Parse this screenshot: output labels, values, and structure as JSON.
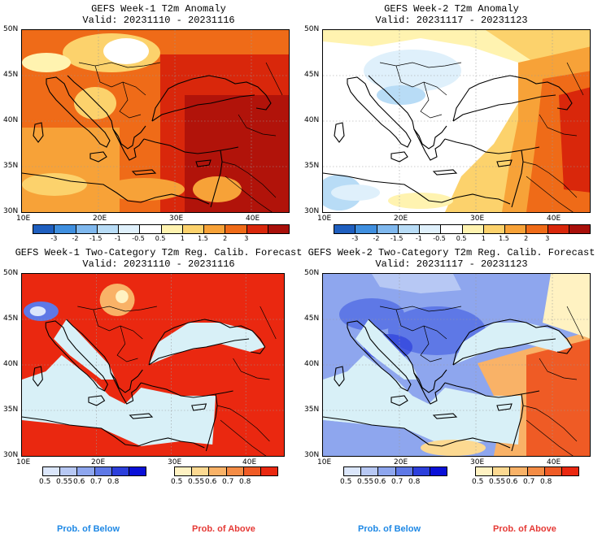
{
  "panels": [
    {
      "title": "GEFS Week-1 T2m Anomaly",
      "valid": "Valid: 20231110 - 20231116"
    },
    {
      "title": "GEFS Week-2 T2m Anomaly",
      "valid": "Valid: 20231117 - 20231123"
    },
    {
      "title": "GEFS Week-1 Two-Category T2m Reg. Calib. Forecast",
      "valid": "Valid: 20231110 - 20231116"
    },
    {
      "title": "GEFS Week-2 Two-Category T2m Reg. Calib. Forecast",
      "valid": "Valid: 20231117 - 20231123"
    }
  ],
  "axes": {
    "lat_labels": [
      "50N",
      "45N",
      "40N",
      "35N",
      "30N"
    ],
    "lon_labels": [
      "10E",
      "20E",
      "30E",
      "40E"
    ]
  },
  "anomaly_colorbar": {
    "labels": [
      "-3",
      "-2",
      "-1.5",
      "-1",
      "-0.5",
      "0.5",
      "1",
      "1.5",
      "2",
      "3"
    ],
    "colors": [
      "#1f5fbf",
      "#3f8fdf",
      "#7fb8ee",
      "#b8dcf6",
      "#dff0fb",
      "#ffffff",
      "#fff3b0",
      "#fcd26c",
      "#f7a238",
      "#ef6b18",
      "#d9270b",
      "#a9100a"
    ]
  },
  "prob_below_bar": {
    "labels": [
      "0.5",
      "0.55",
      "0.6",
      "0.7",
      "0.8"
    ],
    "colors": [
      "#dbe6fb",
      "#b7c8f4",
      "#8ea6ee",
      "#5e78e6",
      "#2c3fdc",
      "#0a10d8"
    ]
  },
  "prob_above_bar": {
    "labels": [
      "0.5",
      "0.55",
      "0.6",
      "0.7",
      "0.8"
    ],
    "colors": [
      "#fff2c2",
      "#fcd991",
      "#f9b267",
      "#f48c45",
      "#ef5b25",
      "#ea2810"
    ]
  },
  "legend": {
    "below": "Prob. of Below",
    "above": "Prob. of Above",
    "below_color": "#1e88e5",
    "above_color": "#e53935"
  }
}
